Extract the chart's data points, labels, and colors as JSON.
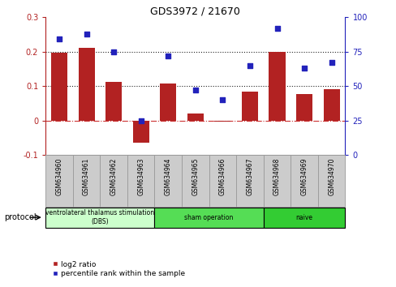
{
  "title": "GDS3972 / 21670",
  "samples": [
    "GSM634960",
    "GSM634961",
    "GSM634962",
    "GSM634963",
    "GSM634964",
    "GSM634965",
    "GSM634966",
    "GSM634967",
    "GSM634968",
    "GSM634969",
    "GSM634970"
  ],
  "log2_ratio": [
    0.196,
    0.212,
    0.112,
    -0.065,
    0.108,
    0.02,
    -0.004,
    0.083,
    0.2,
    0.078,
    0.092
  ],
  "percentile_rank": [
    84,
    88,
    75,
    25,
    72,
    47,
    40,
    65,
    92,
    63,
    67
  ],
  "bar_color": "#b22222",
  "dot_color": "#2222bb",
  "ylim_left": [
    -0.1,
    0.3
  ],
  "ylim_right": [
    0,
    100
  ],
  "yticks_left": [
    -0.1,
    0.0,
    0.1,
    0.2,
    0.3
  ],
  "yticks_right": [
    0,
    25,
    50,
    75,
    100
  ],
  "hline_dotted": [
    0.1,
    0.2
  ],
  "hline_dashdot": 0.0,
  "protocol_groups": [
    {
      "label": "ventrolateral thalamus stimulation\n(DBS)",
      "start": 0,
      "end": 3,
      "color": "#ccffcc"
    },
    {
      "label": "sham operation",
      "start": 4,
      "end": 7,
      "color": "#55dd55"
    },
    {
      "label": "naive",
      "start": 8,
      "end": 10,
      "color": "#33cc33"
    }
  ],
  "legend_log2": "log2 ratio",
  "legend_pct": "percentile rank within the sample",
  "protocol_label": "protocol",
  "background_color": "#ffffff",
  "plot_bg_color": "#ffffff",
  "zero_line_color": "#cc3333",
  "dotted_line_color": "#222222",
  "sample_box_color": "#cccccc",
  "sample_box_edge": "#999999"
}
